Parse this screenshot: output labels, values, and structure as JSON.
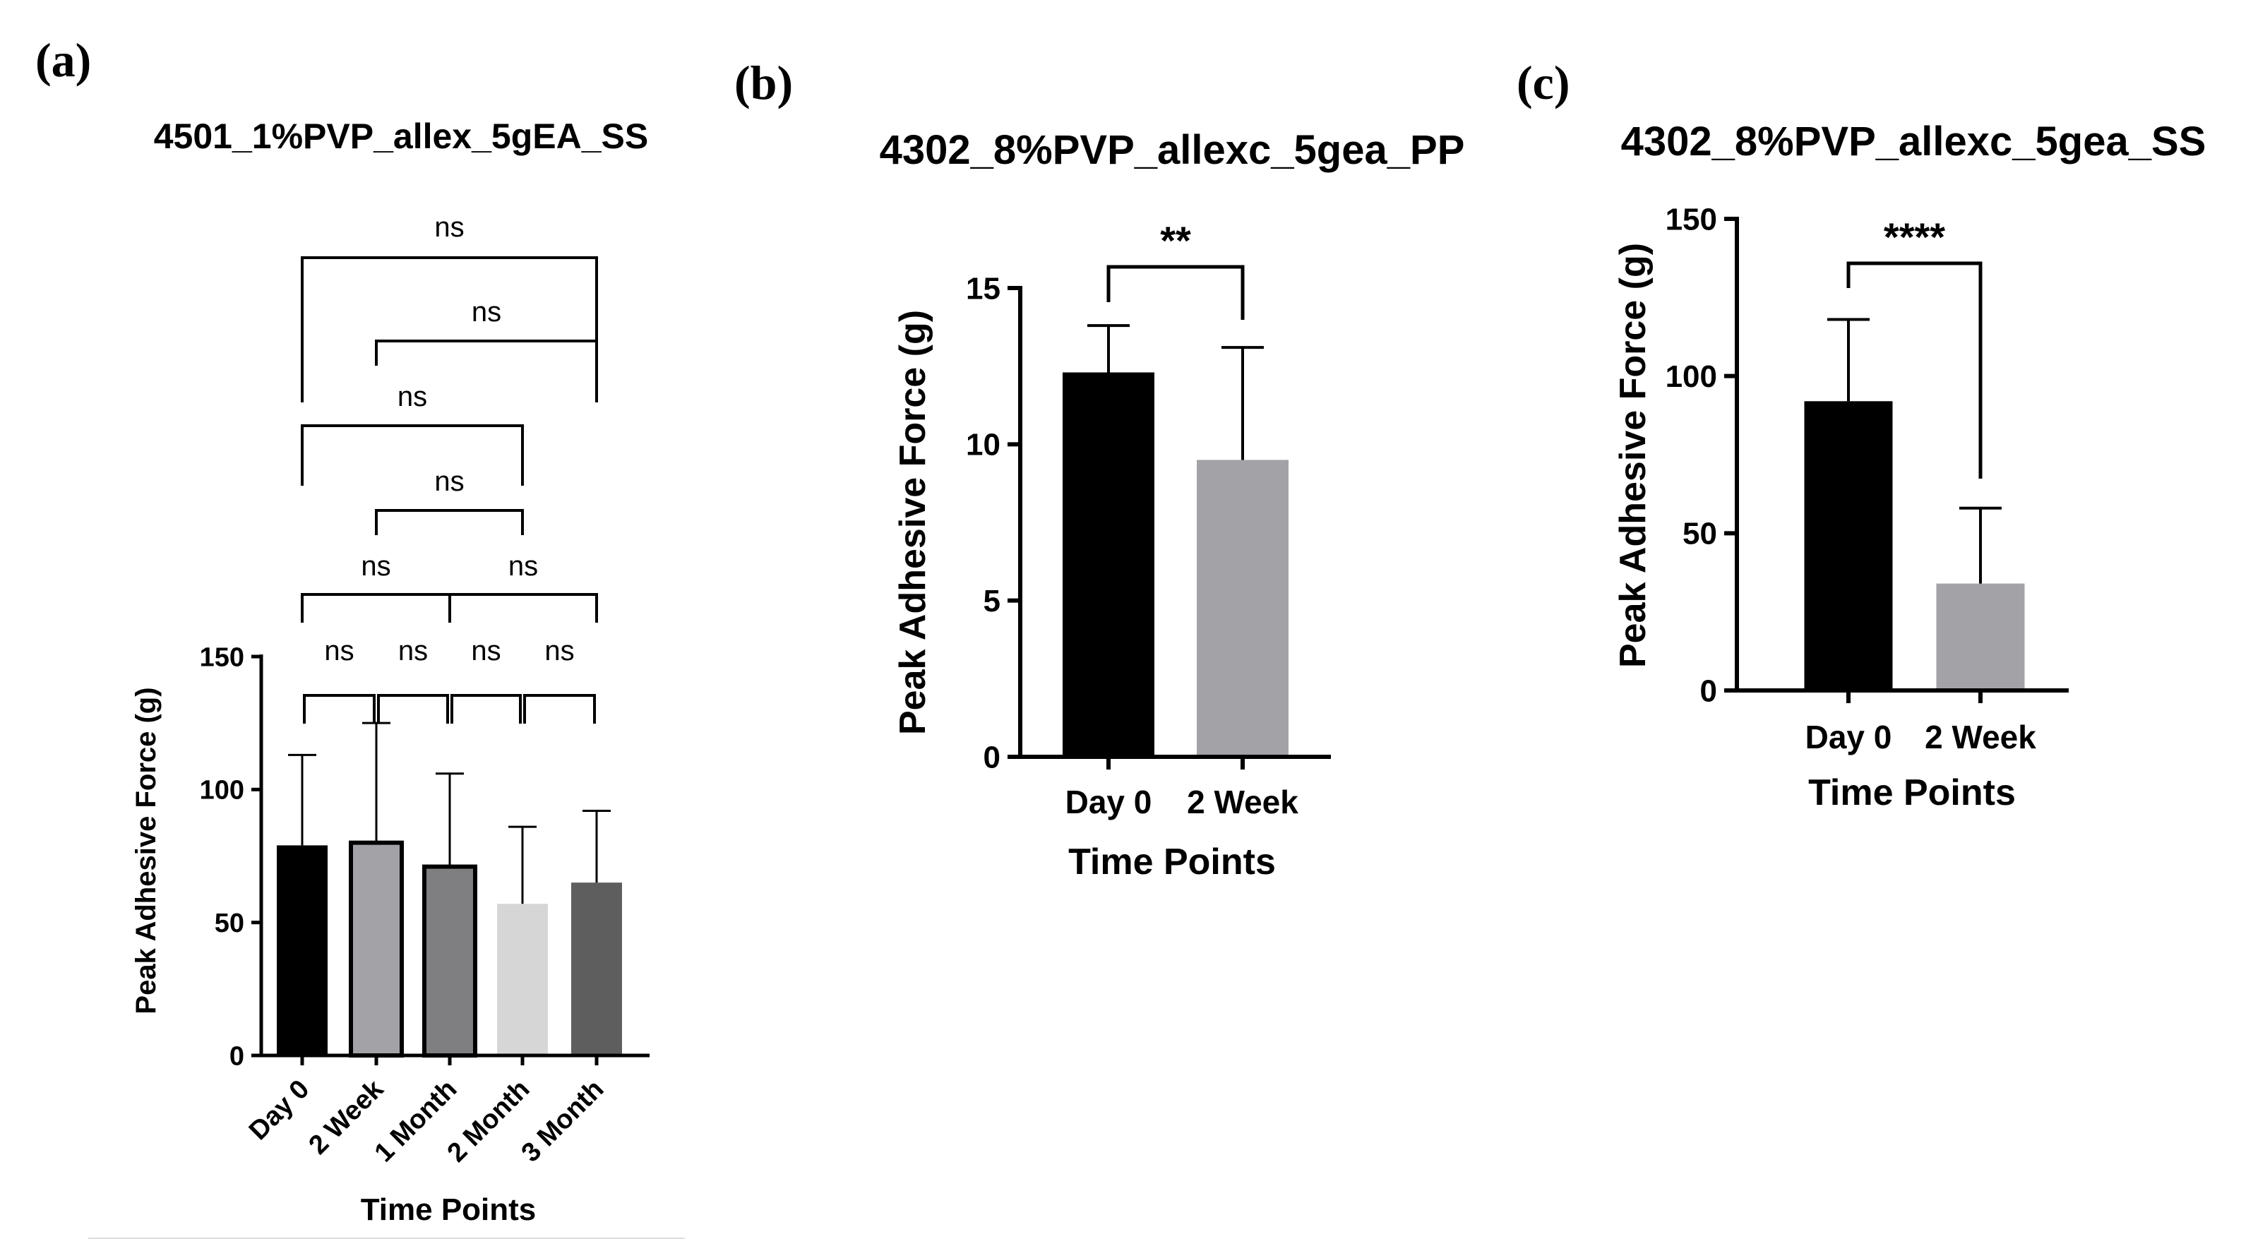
{
  "chart_data": [
    {
      "panel": "(a)",
      "type": "bar",
      "title": "4501_1%PVP_allex_5gEA_SS",
      "xlabel": "Time Points",
      "ylabel": "Peak Adhesive Force (g)",
      "ylim": [
        0,
        150
      ],
      "yticks": [
        "0",
        "50",
        "100",
        "150"
      ],
      "categories": [
        "Day 0",
        "2 Week",
        "1 Month",
        "2 Month",
        "3 Month"
      ],
      "values": [
        79,
        80,
        71,
        57,
        65
      ],
      "errors": [
        34,
        45,
        35,
        29,
        27
      ],
      "bar_colors": [
        "#000000",
        "#a3a3a7",
        "#7f7f81",
        "#d6d6d6",
        "#5e5e5e"
      ],
      "grid": false,
      "comparisons": [
        {
          "pair": [
            "Day 0",
            "2 Week"
          ],
          "label": "ns"
        },
        {
          "pair": [
            "2 Week",
            "1 Month"
          ],
          "label": "ns"
        },
        {
          "pair": [
            "1 Month",
            "2 Month"
          ],
          "label": "ns"
        },
        {
          "pair": [
            "2 Month",
            "3 Month"
          ],
          "label": "ns"
        },
        {
          "pair": [
            "Day 0",
            "1 Month"
          ],
          "label": "ns"
        },
        {
          "pair": [
            "1 Month",
            "3 Month"
          ],
          "label": "ns"
        },
        {
          "pair": [
            "2 Week",
            "2 Month"
          ],
          "label": "ns"
        },
        {
          "pair": [
            "Day 0",
            "2 Month"
          ],
          "label": "ns"
        },
        {
          "pair": [
            "2 Week",
            "3 Month"
          ],
          "label": "ns"
        },
        {
          "pair": [
            "Day 0",
            "3 Month"
          ],
          "label": "ns"
        }
      ]
    },
    {
      "panel": "(b)",
      "type": "bar",
      "title": "4302_8%PVP_allexc_5gea_PP",
      "xlabel": "Time Points",
      "ylabel": "Peak Adhesive Force (g)",
      "ylim": [
        0,
        15
      ],
      "yticks": [
        "0",
        "5",
        "10",
        "15"
      ],
      "categories": [
        "Day 0",
        "2 Week"
      ],
      "values": [
        12.3,
        9.5
      ],
      "errors": [
        1.5,
        3.6
      ],
      "bar_colors": [
        "#000000",
        "#a3a3a7"
      ],
      "grid": false,
      "comparisons": [
        {
          "pair": [
            "Day 0",
            "2 Week"
          ],
          "label": "**"
        }
      ]
    },
    {
      "panel": "(c)",
      "type": "bar",
      "title": "4302_8%PVP_allexc_5gea_SS",
      "xlabel": "Time Points",
      "ylabel": "Peak Adhesive Force (g)",
      "ylim": [
        0,
        150
      ],
      "yticks": [
        "0",
        "50",
        "100",
        "150"
      ],
      "categories": [
        "Day 0",
        "2 Week"
      ],
      "values": [
        92,
        34
      ],
      "errors": [
        26,
        24
      ],
      "bar_colors": [
        "#000000",
        "#a3a3a7"
      ],
      "grid": false,
      "comparisons": [
        {
          "pair": [
            "Day 0",
            "2 Week"
          ],
          "label": "****"
        }
      ]
    }
  ]
}
